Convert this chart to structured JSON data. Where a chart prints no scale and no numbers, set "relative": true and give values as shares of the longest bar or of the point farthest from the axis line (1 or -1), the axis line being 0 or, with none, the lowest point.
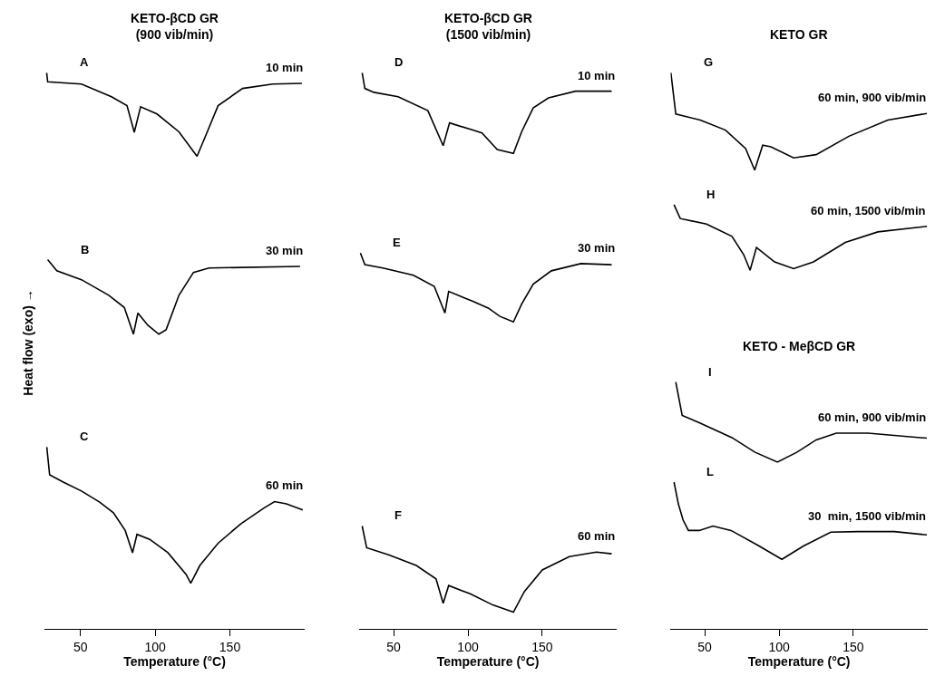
{
  "chart_data": [
    {
      "type": "line",
      "title": "KETO-βCD GR",
      "subtitle": "(900 vib/min)",
      "xlabel": "Temperature (°C)",
      "ylabel": "Heat flow (exo) →",
      "relative": true,
      "line_style": "solid",
      "marker": "none",
      "xlim": [
        26,
        200
      ],
      "xticks": [
        50,
        100,
        150
      ],
      "series": [
        {
          "name": "A",
          "color": "#000000",
          "x": [
            27.3,
            28.0,
            50.6,
            70.7,
            81.1,
            86.0,
            90.2,
            101.2,
            115.9,
            128.0,
            134.1,
            142.1,
            158.5,
            178.7,
            198.2
          ],
          "values": [
            1.0,
            0.984,
            0.98,
            0.957,
            0.941,
            0.893,
            0.939,
            0.926,
            0.894,
            0.85,
            0.889,
            0.941,
            0.972,
            0.98,
            0.981
          ]
        },
        {
          "name": "B",
          "color": "#000000",
          "x": [
            28.0,
            34.1,
            50.6,
            68.9,
            79.3,
            85.4,
            88.4,
            95.1,
            102.4,
            107.3,
            115.9,
            125.6,
            136.0,
            197.0
          ],
          "values": [
            0.664,
            0.644,
            0.628,
            0.6,
            0.578,
            0.53,
            0.568,
            0.546,
            0.53,
            0.538,
            0.6,
            0.641,
            0.649,
            0.652
          ]
        },
        {
          "name": "C",
          "color": "#000000",
          "x": [
            27.4,
            29.3,
            38.4,
            50.6,
            62.8,
            72.0,
            79.9,
            84.8,
            87.8,
            96.3,
            108.5,
            120.7,
            123.8,
            129.9,
            142.1,
            157.3,
            172.6,
            179.9,
            187.8,
            198.8
          ],
          "values": [
            0.327,
            0.277,
            0.264,
            0.248,
            0.228,
            0.209,
            0.177,
            0.137,
            0.17,
            0.161,
            0.137,
            0.098,
            0.082,
            0.114,
            0.154,
            0.189,
            0.217,
            0.229,
            0.225,
            0.214
          ]
        }
      ],
      "annotations": [
        "10 min",
        "30 min",
        "60 min"
      ]
    },
    {
      "type": "line",
      "title": "KETO-βCD GR",
      "subtitle": "(1500 vib/min)",
      "xlabel": "Temperature (°C)",
      "relative": true,
      "line_style": "solid",
      "marker": "none",
      "xlim": [
        27,
        200
      ],
      "xticks": [
        50,
        100,
        150
      ],
      "series": [
        {
          "name": "D",
          "color": "#000000",
          "x": [
            28.8,
            30.6,
            36.7,
            53.0,
            73.0,
            83.3,
            87.6,
            103.3,
            109.4,
            119.7,
            130.6,
            136.1,
            143.9,
            154.2,
            172.4,
            196.7
          ],
          "values": [
            1.0,
            0.972,
            0.965,
            0.957,
            0.932,
            0.869,
            0.91,
            0.897,
            0.892,
            0.862,
            0.855,
            0.894,
            0.937,
            0.955,
            0.967,
            0.967
          ]
        },
        {
          "name": "E",
          "color": "#000000",
          "x": [
            27.6,
            30.6,
            42.7,
            63.3,
            77.3,
            84.5,
            87.0,
            103.3,
            113.6,
            121.5,
            130.6,
            136.1,
            143.9,
            156.1,
            176.0,
            196.7
          ],
          "values": [
            0.676,
            0.655,
            0.649,
            0.636,
            0.616,
            0.568,
            0.607,
            0.589,
            0.577,
            0.562,
            0.552,
            0.584,
            0.62,
            0.644,
            0.657,
            0.655
          ]
        },
        {
          "name": "F",
          "color": "#000000",
          "x": [
            28.8,
            31.8,
            47.0,
            65.2,
            78.5,
            83.3,
            87.0,
            101.5,
            116.7,
            130.6,
            137.9,
            150.0,
            168.2,
            186.4,
            196.7
          ],
          "values": [
            0.185,
            0.146,
            0.133,
            0.114,
            0.09,
            0.046,
            0.078,
            0.063,
            0.043,
            0.03,
            0.067,
            0.106,
            0.13,
            0.138,
            0.135
          ]
        }
      ],
      "annotations": [
        "10 min",
        "30 min",
        "60 min"
      ]
    },
    {
      "type": "line",
      "title": "KETO GR",
      "xlabel": "Temperature (°C)",
      "relative": true,
      "line_style": "solid",
      "marker": "none",
      "xlim": [
        27,
        200
      ],
      "xticks": [
        50,
        100,
        150
      ],
      "series": [
        {
          "name": "G",
          "color": "#000000",
          "x": [
            27.2,
            30.5,
            47.0,
            64.0,
            77.5,
            83.6,
            89.0,
            94.5,
            109.8,
            125.0,
            147.0,
            173.2,
            199.5
          ],
          "values": [
            1.0,
            0.926,
            0.915,
            0.897,
            0.864,
            0.825,
            0.87,
            0.867,
            0.847,
            0.853,
            0.886,
            0.915,
            0.927
          ]
        },
        {
          "name": "H",
          "color": "#000000",
          "x": [
            29.3,
            33.5,
            51.2,
            68.3,
            76.2,
            80.5,
            84.8,
            97.0,
            109.8,
            123.2,
            144.6,
            166.5,
            199.5
          ],
          "values": [
            0.763,
            0.738,
            0.728,
            0.706,
            0.673,
            0.645,
            0.686,
            0.66,
            0.648,
            0.66,
            0.695,
            0.714,
            0.724
          ]
        },
        {
          "name": "I",
          "color": "#000000",
          "x": [
            30.5,
            34.8,
            47.0,
            68.3,
            83.6,
            98.9,
            112.2,
            125.0,
            138.5,
            159.8,
            199.5
          ],
          "values": [
            0.444,
            0.384,
            0.37,
            0.344,
            0.318,
            0.3,
            0.318,
            0.34,
            0.352,
            0.352,
            0.343
          ]
        },
        {
          "name": "L",
          "color": "#000000",
          "x": [
            29.3,
            32.3,
            35.4,
            39.0,
            46.3,
            55.5,
            67.7,
            86.0,
            101.9,
            116.5,
            134.8,
            153.1,
            177.5,
            199.5
          ],
          "values": [
            0.264,
            0.224,
            0.196,
            0.177,
            0.177,
            0.185,
            0.177,
            0.15,
            0.125,
            0.149,
            0.174,
            0.175,
            0.175,
            0.169
          ]
        }
      ],
      "annotations": [
        "60 min, 900 vib/min",
        "60 min, 1500 vib/min",
        "KETO - MeβCD GR",
        "60 min, 900 vib/min",
        "30  min, 1500 vib/min"
      ]
    }
  ]
}
